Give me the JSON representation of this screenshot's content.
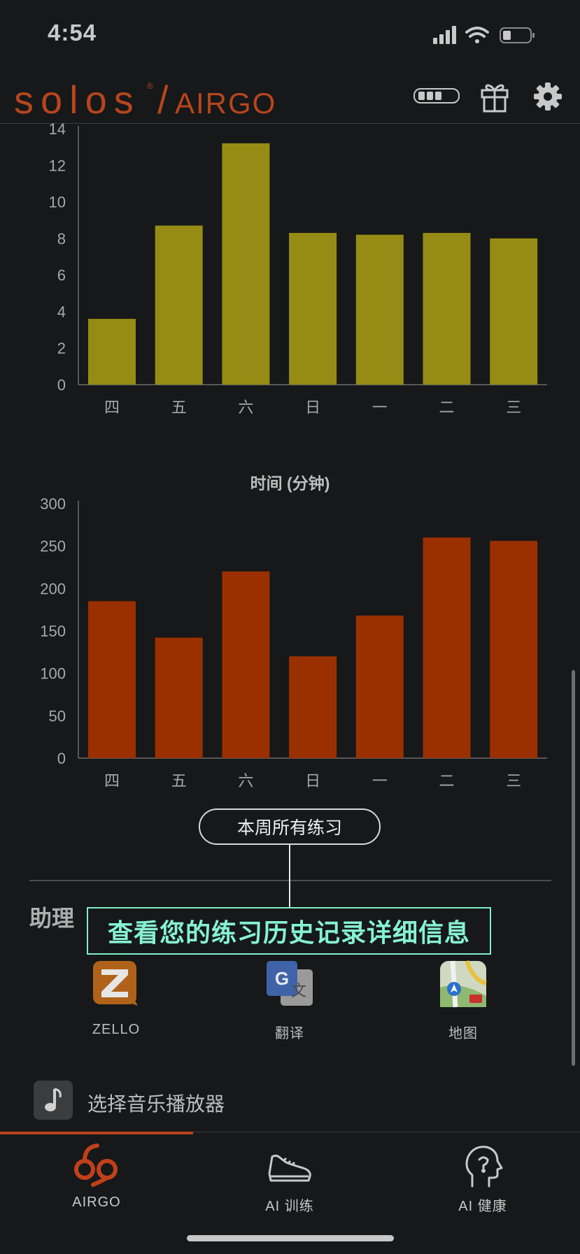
{
  "status_bar": {
    "time": "4:54"
  },
  "header": {
    "brand_main": "solos",
    "brand_mark": "®",
    "brand_sub": "AIRGO"
  },
  "chart_data": [
    {
      "type": "bar",
      "title": "",
      "categories": [
        "四",
        "五",
        "六",
        "日",
        "一",
        "二",
        "三"
      ],
      "values": [
        3.6,
        8.7,
        13.2,
        8.3,
        8.2,
        8.3,
        8.0
      ],
      "ylim": [
        0,
        14
      ],
      "yticks": [
        "0",
        "2",
        "4",
        "6",
        "8",
        "10",
        "12",
        "14"
      ],
      "color": "#968c15"
    },
    {
      "type": "bar",
      "title": "时间 (分钟)",
      "categories": [
        "四",
        "五",
        "六",
        "日",
        "一",
        "二",
        "三"
      ],
      "values": [
        185,
        142,
        220,
        120,
        168,
        260,
        256
      ],
      "ylim": [
        0,
        300
      ],
      "yticks": [
        "0",
        "50",
        "100",
        "150",
        "200",
        "250",
        "300"
      ],
      "color": "#9a3000"
    }
  ],
  "actions": {
    "all_workouts": "本周所有练习"
  },
  "assistant": {
    "title": "助理",
    "tooltip": "查看您的练习历史记录详细信息",
    "apps": [
      {
        "label": "ZELLO",
        "icon": "zello-icon"
      },
      {
        "label": "翻译",
        "icon": "translate-icon"
      },
      {
        "label": "地图",
        "icon": "maps-icon"
      }
    ],
    "music_label": "选择音乐播放器"
  },
  "tabs": [
    {
      "label": "AIRGO",
      "icon": "airgo-logo-icon"
    },
    {
      "label": "AI 训练",
      "icon": "sneaker-icon"
    },
    {
      "label": "AI 健康",
      "icon": "head-profile-icon"
    }
  ],
  "colors": {
    "accent": "#b8451c",
    "tooltip": "#86f2cf",
    "background": "#161819"
  }
}
